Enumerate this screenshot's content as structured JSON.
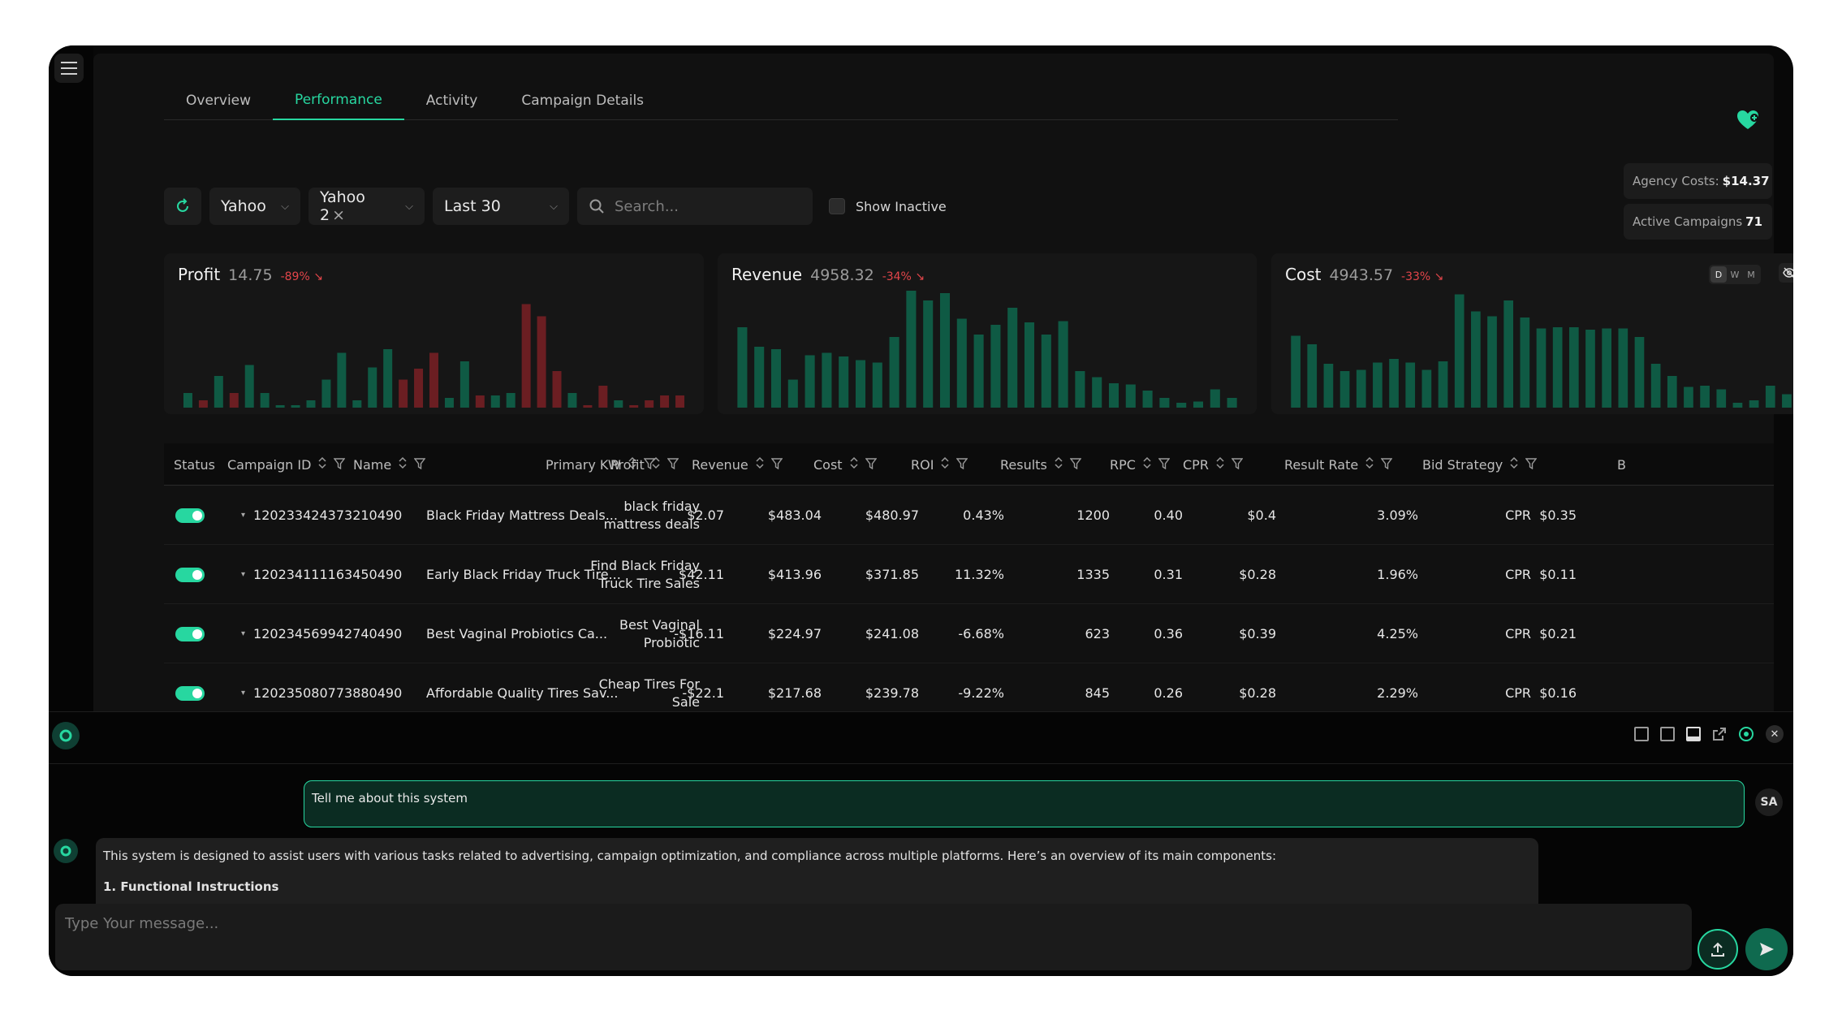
{
  "tabs": [
    "Overview",
    "Performance",
    "Activity",
    "Campaign Details"
  ],
  "filters": {
    "source": "Yahoo",
    "account": "Yahoo 2",
    "account_clear": "×",
    "range": "Last 30",
    "search_placeholder": "Search...",
    "show_inactive": "Show Inactive"
  },
  "stats": {
    "agency_costs_label": "Agency Costs:",
    "agency_costs_value": "$14.37",
    "active_campaigns_label": "Active Campaigns",
    "active_campaigns_value": "71"
  },
  "colors": {
    "accent": "#27d7a0",
    "negative": "#e3454a",
    "bar_green": "#0f5a44",
    "bar_red": "#6b1e22"
  },
  "chart_data": [
    {
      "type": "bar",
      "title": "Profit",
      "value": "14.75",
      "change": "-89%",
      "ylim": [
        -5,
        100
      ],
      "values": [
        12,
        6,
        26,
        12,
        35,
        12,
        1,
        1,
        6,
        23,
        45,
        6,
        33,
        48,
        23,
        32,
        45,
        8,
        38,
        10,
        10,
        12,
        85,
        75,
        30,
        12,
        2,
        18,
        6,
        2,
        6,
        10,
        10
      ],
      "colors": [
        "g",
        "r",
        "g",
        "r",
        "g",
        "g",
        "g",
        "g",
        "g",
        "g",
        "g",
        "g",
        "g",
        "g",
        "r",
        "r",
        "r",
        "g",
        "g",
        "r",
        "g",
        "g",
        "r",
        "r",
        "r",
        "g",
        "r",
        "r",
        "g",
        "r",
        "r",
        "r",
        "r"
      ]
    },
    {
      "type": "bar",
      "title": "Revenue",
      "value": "4958.32",
      "change": "-34%",
      "ylim": [
        0,
        100
      ],
      "values": [
        66,
        50,
        48,
        23,
        43,
        45,
        42,
        39,
        37,
        58,
        96,
        88,
        94,
        73,
        60,
        68,
        82,
        70,
        60,
        71,
        30,
        25,
        20,
        19,
        14,
        8,
        4,
        5,
        15,
        8
      ],
      "colors": [
        "g",
        "g",
        "g",
        "g",
        "g",
        "g",
        "g",
        "g",
        "g",
        "g",
        "g",
        "g",
        "g",
        "g",
        "g",
        "g",
        "g",
        "g",
        "g",
        "g",
        "g",
        "g",
        "g",
        "g",
        "g",
        "g",
        "g",
        "g",
        "g",
        "g"
      ]
    },
    {
      "type": "bar",
      "title": "Cost",
      "value": "4943.57",
      "change": "-33%",
      "ylim": [
        0,
        100
      ],
      "values": [
        59,
        52,
        36,
        30,
        31,
        37,
        40,
        37,
        31,
        38,
        93,
        79,
        75,
        88,
        74,
        65,
        66,
        66,
        64,
        65,
        65,
        58,
        36,
        26,
        17,
        18,
        15,
        4,
        6,
        18,
        11
      ],
      "colors": [
        "g",
        "g",
        "g",
        "g",
        "g",
        "g",
        "g",
        "g",
        "g",
        "g",
        "g",
        "g",
        "g",
        "g",
        "g",
        "g",
        "g",
        "g",
        "g",
        "g",
        "g",
        "g",
        "g",
        "g",
        "g",
        "g",
        "g",
        "g",
        "g",
        "g",
        "g"
      ],
      "period_options": [
        "D",
        "W",
        "M"
      ]
    }
  ],
  "table": {
    "headers": [
      "Status",
      "Campaign ID",
      "Name",
      "Primary KW",
      "Profit",
      "Revenue",
      "Cost",
      "ROI",
      "Results",
      "RPC",
      "CPR",
      "Result Rate",
      "Bid Strategy",
      "B"
    ],
    "rows": [
      {
        "id": "120233424373210490",
        "name": "Black Friday Mattress Deals...",
        "kw1": "black friday",
        "kw2": "mattress deals",
        "profit": "$2.07",
        "revenue": "$483.04",
        "cost": "$480.97",
        "roi": "0.43%",
        "results": "1200",
        "rpc": "0.40",
        "cpr": "$0.4",
        "result_rate": "3.09%",
        "bid": "CPR",
        "bid_value": "$0.35"
      },
      {
        "id": "120234111163450490",
        "name": "Early Black Friday Truck Tire...",
        "kw1": "Find Black Friday",
        "kw2": "Truck Tire Sales",
        "profit": "$42.11",
        "revenue": "$413.96",
        "cost": "$371.85",
        "roi": "11.32%",
        "results": "1335",
        "rpc": "0.31",
        "cpr": "$0.28",
        "result_rate": "1.96%",
        "bid": "CPR",
        "bid_value": "$0.11"
      },
      {
        "id": "120234569942740490",
        "name": "Best Vaginal Probiotics Ca...",
        "kw1": "Best Vaginal",
        "kw2": "Probiotic",
        "profit": "-$16.11",
        "revenue": "$224.97",
        "cost": "$241.08",
        "roi": "-6.68%",
        "results": "623",
        "rpc": "0.36",
        "cpr": "$0.39",
        "result_rate": "4.25%",
        "bid": "CPR",
        "bid_value": "$0.21"
      },
      {
        "id": "120235080773880490",
        "name": "Affordable Quality Tires Sav...",
        "kw1": "Cheap Tires For",
        "kw2": "Sale",
        "profit": "-$22.1",
        "revenue": "$217.68",
        "cost": "$239.78",
        "roi": "-9.22%",
        "results": "845",
        "rpc": "0.26",
        "cpr": "$0.28",
        "result_rate": "2.29%",
        "bid": "CPR",
        "bid_value": "$0.16"
      }
    ]
  },
  "chat": {
    "user_message": "Tell me about this system",
    "user_initials": "SA",
    "bot_message": "This system is designed to assist users with various tasks related to advertising, campaign optimization, and compliance across multiple platforms. Here’s an overview of its main components:",
    "bot_heading": "1. Functional Instructions",
    "input_placeholder": "Type Your message..."
  }
}
